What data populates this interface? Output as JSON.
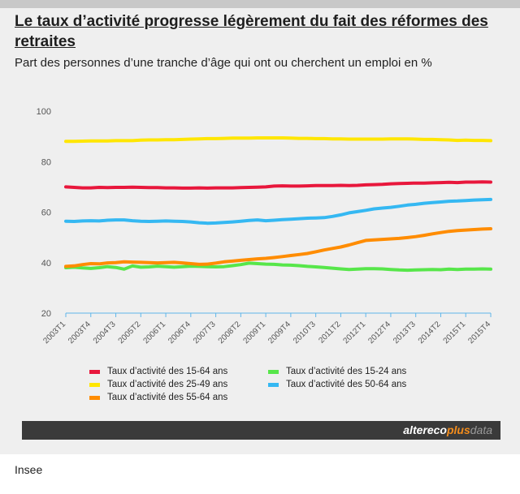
{
  "header": {
    "title": "Le taux d’activité progresse légèrement du fait des réformes des retraites",
    "subtitle": "Part des personnes d’une tranche d’âge qui ont ou cherchent un emploi en %"
  },
  "brand": {
    "part1": "altereco",
    "part2": "plus",
    "part3": "data"
  },
  "source": "Insee",
  "chart_data": {
    "type": "line",
    "ylim": [
      20,
      100
    ],
    "yticks": [
      20,
      40,
      60,
      80,
      100
    ],
    "x_count": 52,
    "xticks": [
      "2003T1",
      "2003T4",
      "2004T3",
      "2005T2",
      "2006T1",
      "2006T4",
      "2007T3",
      "2008T2",
      "2009T1",
      "2009T4",
      "2010T3",
      "2011T2",
      "2012T1",
      "2012T4",
      "2013T3",
      "2014T2",
      "2015T1",
      "2015T4"
    ],
    "grid": false,
    "legend_position": "bottom",
    "series": [
      {
        "name": "Taux d’activité des 15-64 ans",
        "color": "#e8173c",
        "values": [
          70.0,
          69.8,
          69.6,
          69.6,
          69.8,
          69.7,
          69.8,
          69.8,
          69.9,
          69.8,
          69.7,
          69.7,
          69.6,
          69.6,
          69.5,
          69.5,
          69.6,
          69.5,
          69.6,
          69.6,
          69.6,
          69.7,
          69.8,
          69.9,
          70.0,
          70.3,
          70.4,
          70.3,
          70.3,
          70.4,
          70.5,
          70.5,
          70.5,
          70.6,
          70.5,
          70.6,
          70.8,
          70.9,
          71.0,
          71.2,
          71.3,
          71.4,
          71.5,
          71.5,
          71.6,
          71.7,
          71.8,
          71.7,
          71.9,
          71.9,
          72.0,
          71.9
        ]
      },
      {
        "name": "Taux d’activité des 25-49 ans",
        "color": "#ffe600",
        "values": [
          88.0,
          88.0,
          88.1,
          88.2,
          88.2,
          88.2,
          88.3,
          88.3,
          88.3,
          88.5,
          88.6,
          88.6,
          88.7,
          88.7,
          88.8,
          88.9,
          89.0,
          89.1,
          89.1,
          89.2,
          89.3,
          89.3,
          89.3,
          89.4,
          89.4,
          89.4,
          89.4,
          89.3,
          89.2,
          89.2,
          89.1,
          89.1,
          89.0,
          89.0,
          88.9,
          88.9,
          88.9,
          88.9,
          88.9,
          89.0,
          89.0,
          89.0,
          88.9,
          88.8,
          88.8,
          88.7,
          88.6,
          88.4,
          88.5,
          88.4,
          88.4,
          88.3
        ]
      },
      {
        "name": "Taux d’activité des 15-24 ans",
        "color": "#57e64a",
        "values": [
          38.0,
          38.2,
          37.9,
          37.7,
          38.0,
          38.4,
          38.1,
          37.4,
          38.7,
          38.2,
          38.3,
          38.6,
          38.4,
          38.2,
          38.4,
          38.6,
          38.5,
          38.4,
          38.3,
          38.4,
          38.8,
          39.2,
          39.8,
          39.6,
          39.4,
          39.3,
          39.1,
          39.0,
          38.8,
          38.5,
          38.3,
          38.1,
          37.8,
          37.5,
          37.3,
          37.4,
          37.6,
          37.6,
          37.5,
          37.3,
          37.1,
          37.0,
          37.1,
          37.2,
          37.3,
          37.2,
          37.4,
          37.3,
          37.4,
          37.4,
          37.5,
          37.4
        ]
      },
      {
        "name": "Taux d’activité des 25-49 ans",
        "color": "#ffe600",
        "hidden": true,
        "values": []
      },
      {
        "name": "Taux d’activité des 50-64 ans",
        "color": "#35b8f2",
        "values": [
          56.4,
          56.3,
          56.5,
          56.6,
          56.5,
          56.8,
          56.9,
          56.9,
          56.6,
          56.4,
          56.3,
          56.4,
          56.5,
          56.4,
          56.3,
          56.1,
          55.8,
          55.6,
          55.7,
          55.9,
          56.1,
          56.4,
          56.7,
          56.9,
          56.6,
          56.8,
          57.0,
          57.2,
          57.4,
          57.6,
          57.7,
          57.8,
          58.3,
          58.9,
          59.7,
          60.2,
          60.7,
          61.3,
          61.6,
          61.9,
          62.3,
          62.8,
          63.1,
          63.5,
          63.8,
          64.0,
          64.3,
          64.4,
          64.6,
          64.8,
          64.9,
          65.0
        ]
      },
      {
        "name": "Taux d’activité des 55-64 ans",
        "color": "#ff8c00",
        "values": [
          38.5,
          38.7,
          39.2,
          39.6,
          39.5,
          39.9,
          40.0,
          40.3,
          40.2,
          40.1,
          40.0,
          39.9,
          40.0,
          40.1,
          39.9,
          39.6,
          39.3,
          39.4,
          39.8,
          40.3,
          40.6,
          40.9,
          41.2,
          41.5,
          41.7,
          42.0,
          42.4,
          42.8,
          43.2,
          43.6,
          44.3,
          45.0,
          45.6,
          46.2,
          47.0,
          47.9,
          48.8,
          49.0,
          49.2,
          49.4,
          49.6,
          49.9,
          50.3,
          50.8,
          51.4,
          51.9,
          52.4,
          52.7,
          52.9,
          53.1,
          53.3,
          53.4
        ]
      }
    ]
  }
}
